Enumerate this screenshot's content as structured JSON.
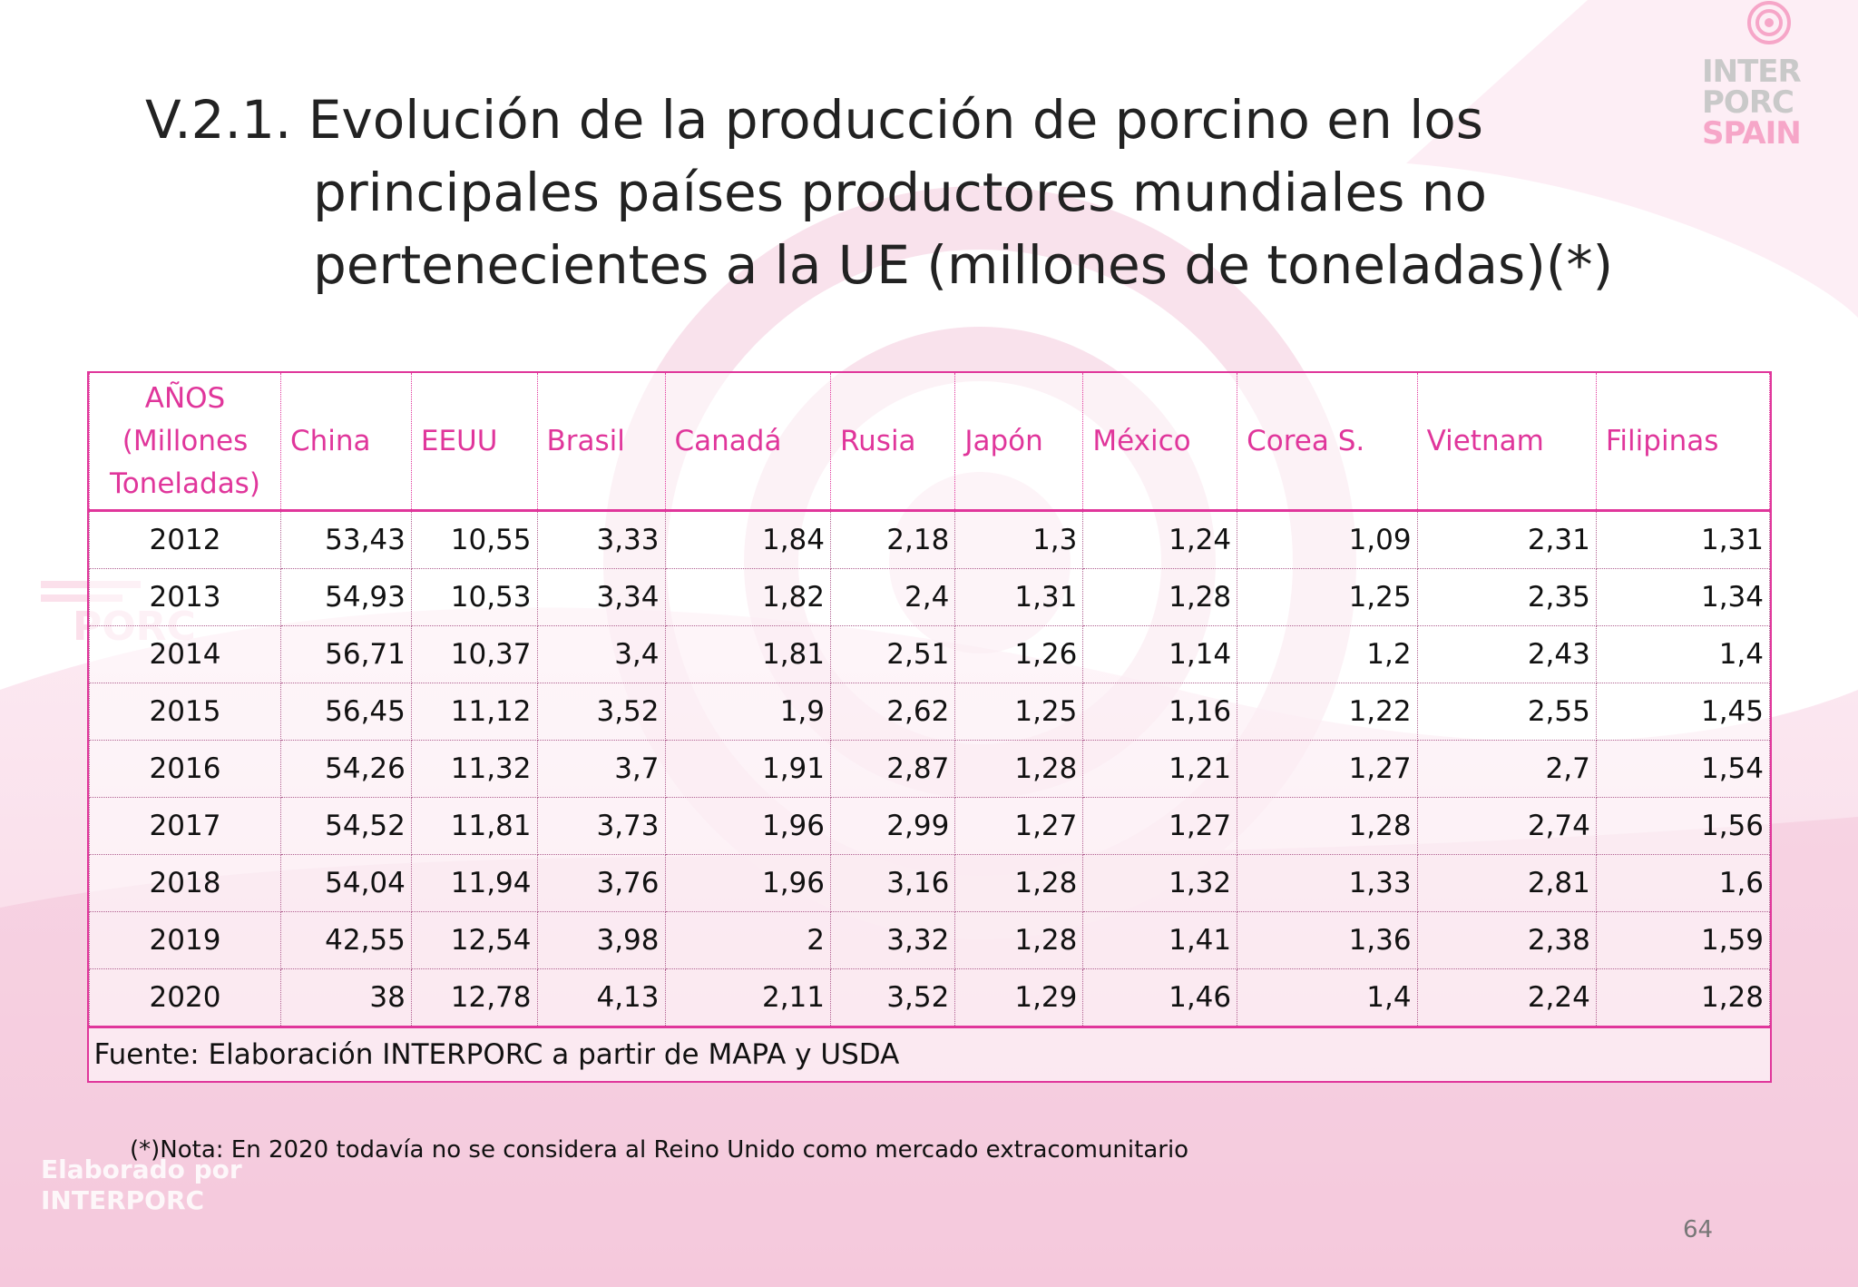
{
  "title": {
    "line1": "V.2.1. Evolución de la producción de porcino en los",
    "line2": "principales países productores mundiales no",
    "line3": "pertenecientes a la UE (millones de toneladas)(*)"
  },
  "logo": {
    "line1": "INTER",
    "line2": "PORC",
    "line3": "SPAIN",
    "icon": "swirl-icon",
    "colors": {
      "accent": "#f6a6c8",
      "gray": "#c9c9c9"
    }
  },
  "watermark": {
    "line1": "Elaborado por",
    "line2": "INTERPORC"
  },
  "table": {
    "header": {
      "years_label": [
        "AÑOS",
        "(Millones",
        "Toneladas)"
      ],
      "countries": [
        "China",
        "EEUU",
        "Brasil",
        "Canadá",
        "Rusia",
        "Japón",
        "México",
        "Corea S.",
        "Vietnam",
        "Filipinas"
      ]
    },
    "rows": [
      {
        "year": "2012",
        "values": [
          "53,43",
          "10,55",
          "3,33",
          "1,84",
          "2,18",
          "1,3",
          "1,24",
          "1,09",
          "2,31",
          "1,31"
        ]
      },
      {
        "year": "2013",
        "values": [
          "54,93",
          "10,53",
          "3,34",
          "1,82",
          "2,4",
          "1,31",
          "1,28",
          "1,25",
          "2,35",
          "1,34"
        ]
      },
      {
        "year": "2014",
        "values": [
          "56,71",
          "10,37",
          "3,4",
          "1,81",
          "2,51",
          "1,26",
          "1,14",
          "1,2",
          "2,43",
          "1,4"
        ]
      },
      {
        "year": "2015",
        "values": [
          "56,45",
          "11,12",
          "3,52",
          "1,9",
          "2,62",
          "1,25",
          "1,16",
          "1,22",
          "2,55",
          "1,45"
        ]
      },
      {
        "year": "2016",
        "values": [
          "54,26",
          "11,32",
          "3,7",
          "1,91",
          "2,87",
          "1,28",
          "1,21",
          "1,27",
          "2,7",
          "1,54"
        ]
      },
      {
        "year": "2017",
        "values": [
          "54,52",
          "11,81",
          "3,73",
          "1,96",
          "2,99",
          "1,27",
          "1,27",
          "1,28",
          "2,74",
          "1,56"
        ]
      },
      {
        "year": "2018",
        "values": [
          "54,04",
          "11,94",
          "3,76",
          "1,96",
          "3,16",
          "1,28",
          "1,32",
          "1,33",
          "2,81",
          "1,6"
        ]
      },
      {
        "year": "2019",
        "values": [
          "42,55",
          "12,54",
          "3,98",
          "2",
          "3,32",
          "1,28",
          "1,41",
          "1,36",
          "2,38",
          "1,59"
        ]
      },
      {
        "year": "2020",
        "values": [
          "38",
          "12,78",
          "4,13",
          "2,11",
          "3,52",
          "1,29",
          "1,46",
          "1,4",
          "2,24",
          "1,28"
        ]
      }
    ],
    "source": "Fuente: Elaboración INTERPORC a partir de MAPA y USDA"
  },
  "note": "(*)Nota: En 2020 todavía no se considera al Reino Unido como mercado extracomunitario",
  "page_number": "64",
  "colors": {
    "accent": "#e0369b",
    "background_tint": "#f4c6dc"
  }
}
